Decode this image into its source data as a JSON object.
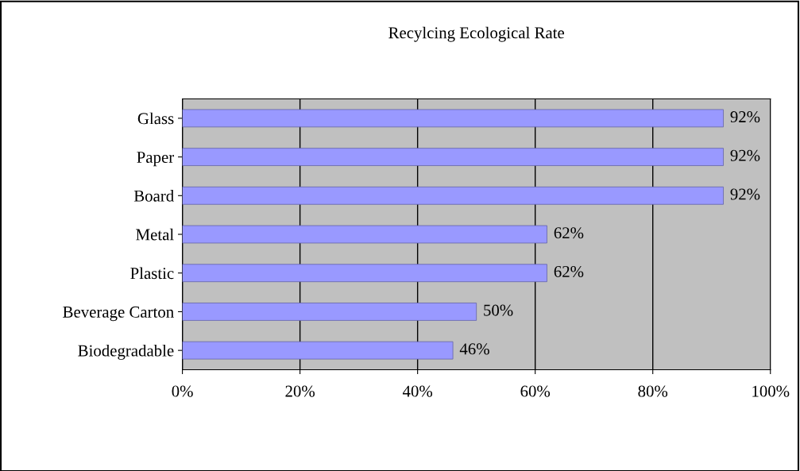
{
  "chart_data": {
    "type": "bar",
    "orientation": "horizontal",
    "title": "Recylcing Ecological Rate",
    "categories": [
      "Glass",
      "Paper",
      "Board",
      "Metal",
      "Plastic",
      "Beverage Carton",
      "Biodegradable"
    ],
    "values": [
      92,
      92,
      92,
      62,
      62,
      50,
      46
    ],
    "value_labels": [
      "92%",
      "92%",
      "92%",
      "62%",
      "62%",
      "50%",
      "46%"
    ],
    "color": "#9999ff",
    "xlim": [
      0,
      100
    ],
    "xticks": [
      {
        "value": 0,
        "label": "0%"
      },
      {
        "value": 20,
        "label": "20%"
      },
      {
        "value": 40,
        "label": "40%"
      },
      {
        "value": 60,
        "label": "60%"
      },
      {
        "value": 80,
        "label": "80%"
      },
      {
        "value": 100,
        "label": "100%"
      }
    ],
    "grid": "x"
  }
}
